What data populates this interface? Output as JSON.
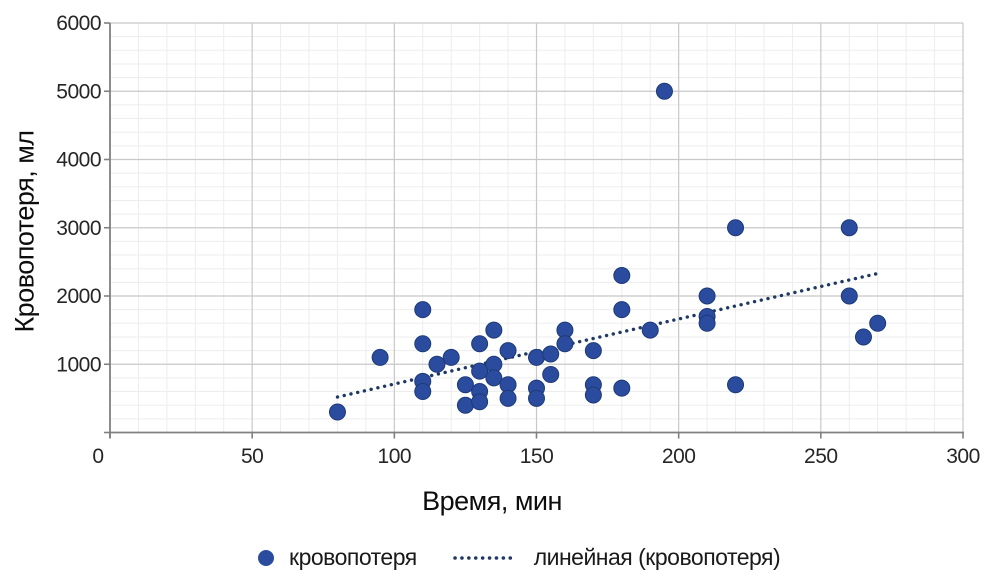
{
  "chart_data": {
    "type": "scatter",
    "title": "",
    "xlabel": "Время, мин",
    "ylabel": "Кровопотеря, мл",
    "xlim": [
      0,
      300
    ],
    "ylim": [
      0,
      6000
    ],
    "x_major_ticks": [
      0,
      50,
      100,
      150,
      200,
      250,
      300
    ],
    "y_major_ticks": [
      0,
      1000,
      2000,
      3000,
      4000,
      5000,
      6000
    ],
    "x_minor_step": 10,
    "y_minor_step": 200,
    "grid": "major and minor, light gray",
    "legend_position": "bottom",
    "series": [
      {
        "name": "кровопотеря",
        "type": "scatter",
        "color": "#2b4c9e",
        "border_color": "#1d3a78",
        "points": [
          [
            80,
            300
          ],
          [
            95,
            1100
          ],
          [
            110,
            1800
          ],
          [
            110,
            1300
          ],
          [
            110,
            750
          ],
          [
            110,
            600
          ],
          [
            115,
            1000
          ],
          [
            120,
            1100
          ],
          [
            125,
            700
          ],
          [
            125,
            400
          ],
          [
            130,
            1300
          ],
          [
            130,
            900
          ],
          [
            130,
            600
          ],
          [
            130,
            450
          ],
          [
            135,
            1500
          ],
          [
            135,
            1000
          ],
          [
            135,
            800
          ],
          [
            140,
            1200
          ],
          [
            140,
            700
          ],
          [
            140,
            500
          ],
          [
            150,
            1100
          ],
          [
            150,
            650
          ],
          [
            150,
            500
          ],
          [
            155,
            1150
          ],
          [
            155,
            850
          ],
          [
            160,
            1500
          ],
          [
            160,
            1300
          ],
          [
            170,
            1200
          ],
          [
            170,
            700
          ],
          [
            170,
            550
          ],
          [
            180,
            2300
          ],
          [
            180,
            1800
          ],
          [
            180,
            650
          ],
          [
            190,
            1500
          ],
          [
            195,
            5000
          ],
          [
            210,
            2000
          ],
          [
            210,
            1700
          ],
          [
            210,
            1600
          ],
          [
            220,
            3000
          ],
          [
            220,
            700
          ],
          [
            260,
            3000
          ],
          [
            260,
            2000
          ],
          [
            265,
            1400
          ],
          [
            270,
            1600
          ]
        ]
      },
      {
        "name": "линейная (кровопотеря)",
        "type": "linear-trendline",
        "style": "dotted",
        "color": "#1f3864",
        "x1": 80,
        "y1": 520,
        "x2": 270,
        "y2": 2330
      }
    ]
  },
  "legend": {
    "items": [
      {
        "label": "кровопотеря"
      },
      {
        "label": "линейная (кровопотеря)"
      }
    ]
  }
}
